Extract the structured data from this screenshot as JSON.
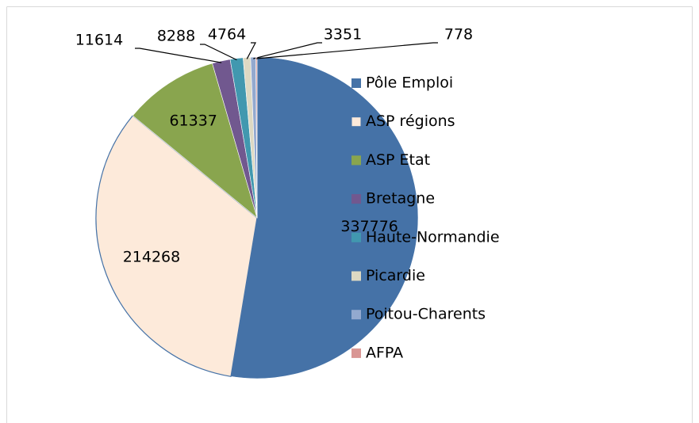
{
  "chart_data": {
    "type": "pie",
    "categories": [
      "Pôle Emploi",
      "ASP régions",
      "ASP Etat",
      "Bretagne",
      "Haute-Normandie",
      "Picardie",
      "Poitou-Charents",
      "AFPA"
    ],
    "values": [
      337776,
      214268,
      61337,
      11614,
      8288,
      4764,
      3351,
      778
    ],
    "colors": [
      "#4572a7",
      "#fdeada",
      "#89a54e",
      "#71588f",
      "#4198af",
      "#ddd9c3",
      "#93a9cf",
      "#d99694"
    ],
    "legend": "right"
  }
}
